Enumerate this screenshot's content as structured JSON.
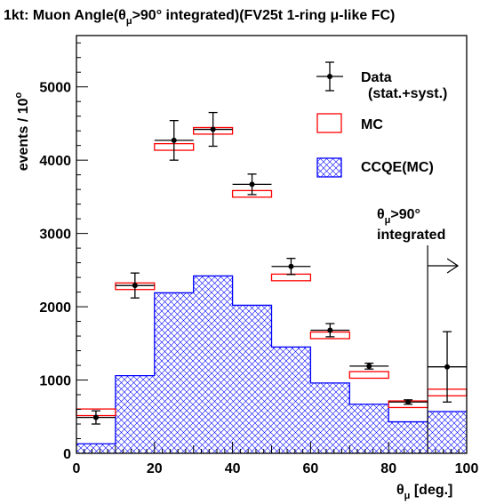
{
  "chart_data": {
    "type": "histogram",
    "title_parts": [
      "1kt: Muon Angle(θ",
      "μ",
      ">90° integrated)(FV25t 1-ring μ-like FC)"
    ],
    "xlabel_parts": [
      "θ",
      "μ",
      " [deg.]"
    ],
    "ylabel_parts": [
      "events / 10",
      "o"
    ],
    "xlim": [
      0,
      100
    ],
    "ylim": [
      0,
      5700
    ],
    "xticks": [
      0,
      20,
      40,
      60,
      80,
      100
    ],
    "yticks": [
      0,
      1000,
      2000,
      3000,
      4000,
      5000
    ],
    "bin_edges": [
      0,
      10,
      20,
      30,
      40,
      50,
      60,
      70,
      80,
      90,
      100
    ],
    "mc_values": [
      560,
      2280,
      4180,
      4400,
      3540,
      2400,
      1610,
      1070,
      670,
      830
    ],
    "mc_box_height": 90,
    "ccqe_values": [
      130,
      1060,
      2190,
      2420,
      2020,
      1450,
      960,
      670,
      430,
      570
    ],
    "data_values": [
      490,
      2290,
      4270,
      4420,
      3670,
      2550,
      1680,
      1190,
      700,
      1180
    ],
    "data_errors": [
      90,
      170,
      270,
      230,
      140,
      110,
      90,
      40,
      30,
      480
    ],
    "data_x": [
      5,
      15,
      25,
      35,
      45,
      55,
      65,
      75,
      85,
      95
    ],
    "legend": [
      {
        "label": "Data",
        "sublabel": "(stat.+syst.)",
        "style": "points"
      },
      {
        "label": "MC",
        "style": "box"
      },
      {
        "label": "CCQE(MC)",
        "style": "hatch"
      }
    ],
    "annotation": {
      "line1_parts": [
        "θ",
        "μ",
        ">90°"
      ],
      "line2": "integrated",
      "x": 90
    },
    "colors": {
      "mc": "#ff0000",
      "ccqe": "#0000ff",
      "data": "#000000",
      "frame": "#000000"
    }
  }
}
